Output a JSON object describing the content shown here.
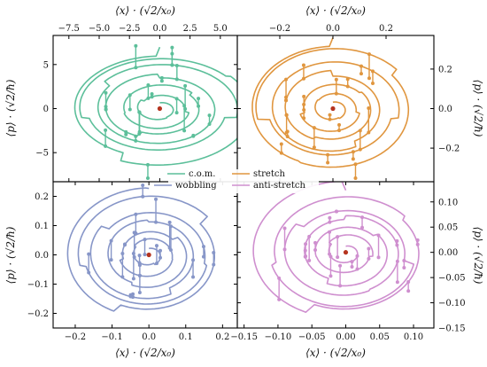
{
  "chart_data": [
    {
      "type": "line",
      "panel": "top-left",
      "series": [
        {
          "name": "c.o.m.",
          "color": "#5cbf9a"
        }
      ],
      "xlabel": "⟨x⟩ · (√2/x₀)",
      "ylabel": "⟨p⟩ · (√2/ħ)",
      "xlim": [
        -8.8,
        6.4
      ],
      "ylim": [
        -8.3,
        8.3
      ],
      "xticks": [
        -7.5,
        -5.0,
        -2.5,
        0.0,
        2.5,
        5.0
      ],
      "xtick_labels": [
        "−7.5",
        "−5.0",
        "−2.5",
        "0.0",
        "2.5",
        "5.0"
      ],
      "yticks": [
        -5,
        0,
        5
      ],
      "ytick_labels": [
        "−5",
        "0",
        "5"
      ],
      "x_axis_position": "top",
      "y_axis_position": "left",
      "spiral": {
        "turns": 6,
        "start_radius": 0.8,
        "end_radius": 8.0,
        "aspect": 0.82
      },
      "origin_marker": [
        0.0,
        0.0
      ]
    },
    {
      "type": "line",
      "panel": "top-right",
      "series": [
        {
          "name": "stretch",
          "color": "#e0963f"
        }
      ],
      "xlabel": "⟨x⟩ · (√2/x₀)",
      "ylabel": "⟨p⟩ · (√2/ħ)",
      "xlim": [
        -0.36,
        0.38
      ],
      "ylim": [
        -0.37,
        0.37
      ],
      "xticks": [
        -0.2,
        0.0,
        0.2
      ],
      "xtick_labels": [
        "−0.2",
        "0.0",
        "0.2"
      ],
      "yticks": [
        -0.2,
        0.0,
        0.2
      ],
      "ytick_labels": [
        "−0.2",
        "0.0",
        "0.2"
      ],
      "x_axis_position": "top",
      "y_axis_position": "right",
      "spiral": {
        "turns": 6,
        "start_radius": 0.03,
        "end_radius": 0.33,
        "aspect": 1.0
      },
      "origin_marker": [
        0.0,
        0.0
      ]
    },
    {
      "type": "line",
      "panel": "bottom-left",
      "series": [
        {
          "name": "wobbling",
          "color": "#8796c8"
        }
      ],
      "xlabel": "⟨x⟩ · (√2/x₀)",
      "ylabel": "⟨p⟩ · (√2/ħ)",
      "xlim": [
        -0.26,
        0.24
      ],
      "ylim": [
        -0.25,
        0.25
      ],
      "xticks": [
        -0.2,
        -0.1,
        0.0,
        0.1,
        0.2
      ],
      "xtick_labels": [
        "−0.2",
        "−0.1",
        "0.0",
        "0.1",
        "0.2"
      ],
      "yticks": [
        -0.2,
        -0.1,
        0.0,
        0.1,
        0.2
      ],
      "ytick_labels": [
        "−0.2",
        "−0.1",
        "0.0",
        "0.1",
        "0.2"
      ],
      "x_axis_position": "bottom",
      "y_axis_position": "left",
      "spiral": {
        "turns": 6,
        "start_radius": 0.02,
        "end_radius": 0.22,
        "aspect": 1.0
      },
      "origin_marker": [
        0.0,
        0.0
      ]
    },
    {
      "type": "line",
      "panel": "bottom-right",
      "series": [
        {
          "name": "anti-stretch",
          "color": "#cf8fcf"
        }
      ],
      "xlabel": "⟨x⟩ · (√2/x₀)",
      "ylabel": "⟨p⟩ · (√2/ħ)",
      "xlim": [
        -0.16,
        0.13
      ],
      "ylim": [
        -0.15,
        0.14
      ],
      "xticks": [
        -0.15,
        -0.1,
        -0.05,
        0.0,
        0.05,
        0.1
      ],
      "xtick_labels": [
        "−0.15",
        "−0.10",
        "−0.05",
        "0.00",
        "0.05",
        "0.10"
      ],
      "yticks": [
        -0.15,
        -0.1,
        -0.05,
        0.0,
        0.05,
        0.1
      ],
      "ytick_labels": [
        "−0.15",
        "−0.10",
        "−0.05",
        "0.00",
        "0.05",
        "0.10"
      ],
      "x_axis_position": "bottom",
      "y_axis_position": "right",
      "spiral": {
        "turns": 6,
        "start_radius": 0.012,
        "end_radius": 0.13,
        "aspect": 1.0
      },
      "origin_marker": [
        0.0,
        0.0
      ]
    }
  ],
  "legend": {
    "placement": "center",
    "entries": [
      {
        "label": "c.o.m.",
        "color": "#5cbf9a"
      },
      {
        "label": "stretch",
        "color": "#e0963f"
      },
      {
        "label": "wobbling",
        "color": "#8796c8"
      },
      {
        "label": "anti-stretch",
        "color": "#cf8fcf"
      }
    ]
  },
  "colors": {
    "origin_marker": "#b5341f"
  }
}
